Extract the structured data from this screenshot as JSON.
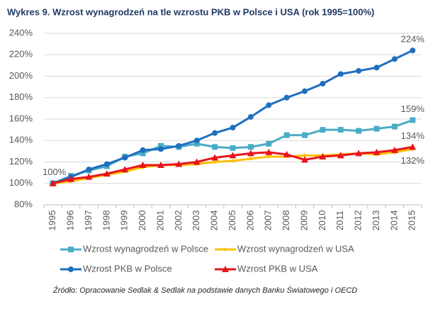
{
  "chart_data": {
    "type": "line",
    "title": "Wykres 9. Wzrost wynagrodzeń na tle wzrostu PKB w Polsce i USA (rok 1995=100%)",
    "source": "Źródło: Opracowanie Sedlak & Sedlak na podstawie danych Banku Światowego i OECD",
    "categories": [
      "1995",
      "1996",
      "1997",
      "1998",
      "1999",
      "2000",
      "2001",
      "2002",
      "2003",
      "2004",
      "2005",
      "2006",
      "2007",
      "2008",
      "2009",
      "2010",
      "2011",
      "2012",
      "2013",
      "2014",
      "2015"
    ],
    "ylim": [
      80,
      240
    ],
    "yticks": [
      {
        "value": 80,
        "label": "80%"
      },
      {
        "value": 100,
        "label": "100%"
      },
      {
        "value": 120,
        "label": "120%"
      },
      {
        "value": 140,
        "label": "140%"
      },
      {
        "value": 160,
        "label": "160%"
      },
      {
        "value": 180,
        "label": "180%"
      },
      {
        "value": 200,
        "label": "200%"
      },
      {
        "value": 220,
        "label": "220%"
      },
      {
        "value": 240,
        "label": "240%"
      }
    ],
    "grid": true,
    "legend": "bottom",
    "series": [
      {
        "name": "Wzrost wynagrodzeń w Polsce",
        "color": "#4bacc6",
        "marker": "square",
        "values": [
          100,
          107,
          112,
          116,
          125,
          128,
          135,
          134,
          137,
          134,
          133,
          134,
          137,
          145,
          145,
          150,
          150,
          149,
          151,
          153,
          159
        ],
        "value_labels": [
          null,
          null,
          null,
          null,
          null,
          null,
          null,
          null,
          null,
          null,
          null,
          null,
          null,
          null,
          null,
          null,
          null,
          null,
          null,
          null,
          "159%"
        ]
      },
      {
        "name": "Wzrost wynagrodzeń w USA",
        "color": "#ffc000",
        "marker": "diamond",
        "values": [
          100,
          102,
          105,
          108,
          111,
          115,
          117,
          117,
          118,
          120,
          121,
          123,
          125,
          125,
          126,
          126,
          127,
          128,
          127,
          129,
          132
        ],
        "value_labels": [
          null,
          null,
          null,
          null,
          null,
          null,
          null,
          null,
          null,
          null,
          null,
          null,
          null,
          null,
          null,
          null,
          null,
          null,
          null,
          null,
          "132%"
        ]
      },
      {
        "name": "Wzrost PKB w Polsce",
        "color": "#1f6fbf",
        "marker": "circle",
        "values": [
          100,
          106,
          113,
          118,
          124,
          131,
          132,
          135,
          140,
          147,
          152,
          162,
          173,
          180,
          186,
          193,
          202,
          205,
          208,
          216,
          224
        ],
        "value_labels": [
          "100%",
          null,
          null,
          null,
          null,
          null,
          null,
          null,
          null,
          null,
          null,
          null,
          null,
          null,
          null,
          null,
          null,
          null,
          null,
          null,
          "224%"
        ]
      },
      {
        "name": "Wzrost PKB w USA",
        "color": "#e8141c",
        "marker": "triangle",
        "values": [
          100,
          104,
          106,
          109,
          113,
          117,
          117,
          118,
          120,
          124,
          126,
          128,
          129,
          127,
          122,
          125,
          126,
          128,
          129,
          131,
          134
        ],
        "value_labels": [
          null,
          null,
          null,
          null,
          null,
          null,
          null,
          null,
          null,
          null,
          null,
          null,
          null,
          null,
          null,
          null,
          null,
          null,
          null,
          null,
          "134%"
        ]
      }
    ]
  }
}
